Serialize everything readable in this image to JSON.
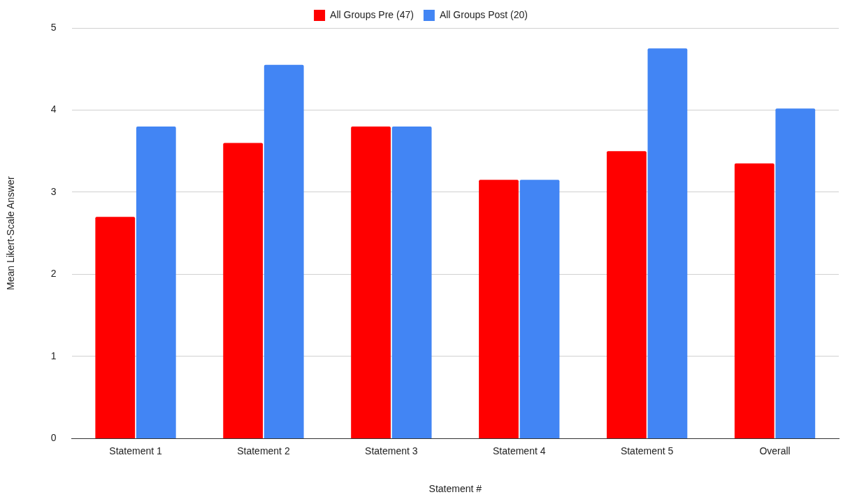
{
  "chart_data": {
    "type": "bar",
    "xlabel": "Statement #",
    "ylabel": "Mean Likert-Scale Answer",
    "categories": [
      "Statement 1",
      "Statement 2",
      "Statement 3",
      "Statement 4",
      "Statement 5",
      "Overall"
    ],
    "series": [
      {
        "name": "All Groups Pre (47)",
        "color": "#ff0000",
        "values": [
          2.7,
          3.6,
          3.8,
          3.15,
          3.5,
          3.35
        ]
      },
      {
        "name": "All Groups Post (20)",
        "color": "#4285f4",
        "values": [
          3.8,
          4.55,
          3.8,
          3.15,
          4.75,
          4.02
        ]
      }
    ],
    "ylim": [
      0,
      5
    ],
    "yticks": [
      0,
      1,
      2,
      3,
      4,
      5
    ],
    "grid": "y",
    "legend": "top"
  }
}
